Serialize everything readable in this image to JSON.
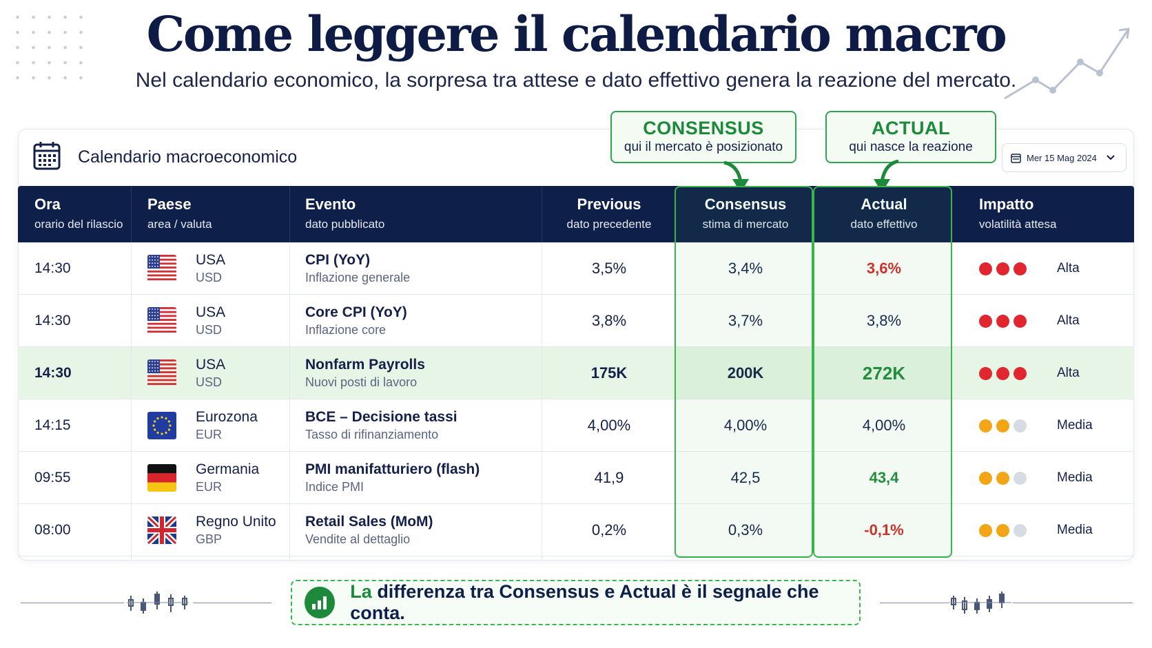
{
  "header": {
    "title": "Come leggere il calendario macro",
    "subtitle": "Nel calendario economico, la sorpresa tra attese e dato effettivo genera la reazione del mercato."
  },
  "card": {
    "title": "Calendario macroeconomico",
    "date": "Mer 15 Mag 2024"
  },
  "callouts": {
    "consensus": {
      "title": "CONSENSUS",
      "text": "qui il mercato è posizionato"
    },
    "actual": {
      "title": "ACTUAL",
      "text": "qui nasce la reazione"
    }
  },
  "columns": [
    {
      "title": "Ora",
      "sub": "orario del rilascio"
    },
    {
      "title": "Paese",
      "sub": "area / valuta"
    },
    {
      "title": "Evento",
      "sub": "dato pubblicato"
    },
    {
      "title": "Previous",
      "sub": "dato precedente"
    },
    {
      "title": "Consensus",
      "sub": "stima di mercato"
    },
    {
      "title": "Actual",
      "sub": "dato effettivo"
    },
    {
      "title": "Impatto",
      "sub": "volatilità attesa"
    }
  ],
  "rows": [
    {
      "time": "14:30",
      "flag": "us-flag",
      "country": "USA",
      "currency": "USD",
      "event": "CPI (YoY)",
      "event_sub": "Inflazione generale",
      "previous": "3,5%",
      "consensus": "3,4%",
      "actual": "3,6%",
      "actual_tone": "red",
      "impact_level": 3,
      "impact_color": "#e0262e",
      "impact": "Alta",
      "highlight": false
    },
    {
      "time": "14:30",
      "flag": "us-flag",
      "country": "USA",
      "currency": "USD",
      "event": "Core CPI (YoY)",
      "event_sub": "Inflazione core",
      "previous": "3,8%",
      "consensus": "3,7%",
      "actual": "3,8%",
      "actual_tone": "neutral",
      "impact_level": 3,
      "impact_color": "#e0262e",
      "impact": "Alta",
      "highlight": false
    },
    {
      "time": "14:30",
      "flag": "us-flag",
      "country": "USA",
      "currency": "USD",
      "event": "Nonfarm Payrolls",
      "event_sub": "Nuovi posti di lavoro",
      "previous": "175K",
      "consensus": "200K",
      "actual": "272K",
      "actual_tone": "green",
      "impact_level": 3,
      "impact_color": "#e0262e",
      "impact": "Alta",
      "highlight": true
    },
    {
      "time": "14:15",
      "flag": "eu-flag",
      "country": "Eurozona",
      "currency": "EUR",
      "event": "BCE – Decisione tassi",
      "event_sub": "Tasso di rifinanziamento",
      "previous": "4,00%",
      "consensus": "4,00%",
      "actual": "4,00%",
      "actual_tone": "neutral",
      "impact_level": 2,
      "impact_color": "#f2a516",
      "impact": "Media",
      "highlight": false
    },
    {
      "time": "09:55",
      "flag": "de-flag",
      "country": "Germania",
      "currency": "EUR",
      "event": "PMI manifatturiero (flash)",
      "event_sub": "Indice PMI",
      "previous": "41,9",
      "consensus": "42,5",
      "actual": "43,4",
      "actual_tone": "green",
      "impact_level": 2,
      "impact_color": "#f2a516",
      "impact": "Media",
      "highlight": false
    },
    {
      "time": "08:00",
      "flag": "uk-flag",
      "country": "Regno Unito",
      "currency": "GBP",
      "event": "Retail Sales (MoM)",
      "event_sub": "Vendite al dettaglio",
      "previous": "0,2%",
      "consensus": "0,3%",
      "actual": "-0,1%",
      "actual_tone": "red",
      "impact_level": 2,
      "impact_color": "#f2a516",
      "impact": "Media",
      "highlight": false
    }
  ],
  "footer": {
    "part1": "La",
    "part2": "differenza tra Consensus e Actual è il segnale che conta."
  },
  "icons": [
    "calendar-icon",
    "chevron-down-icon",
    "bar-chart-icon",
    "trend-line-icon",
    "candlestick-icon"
  ]
}
